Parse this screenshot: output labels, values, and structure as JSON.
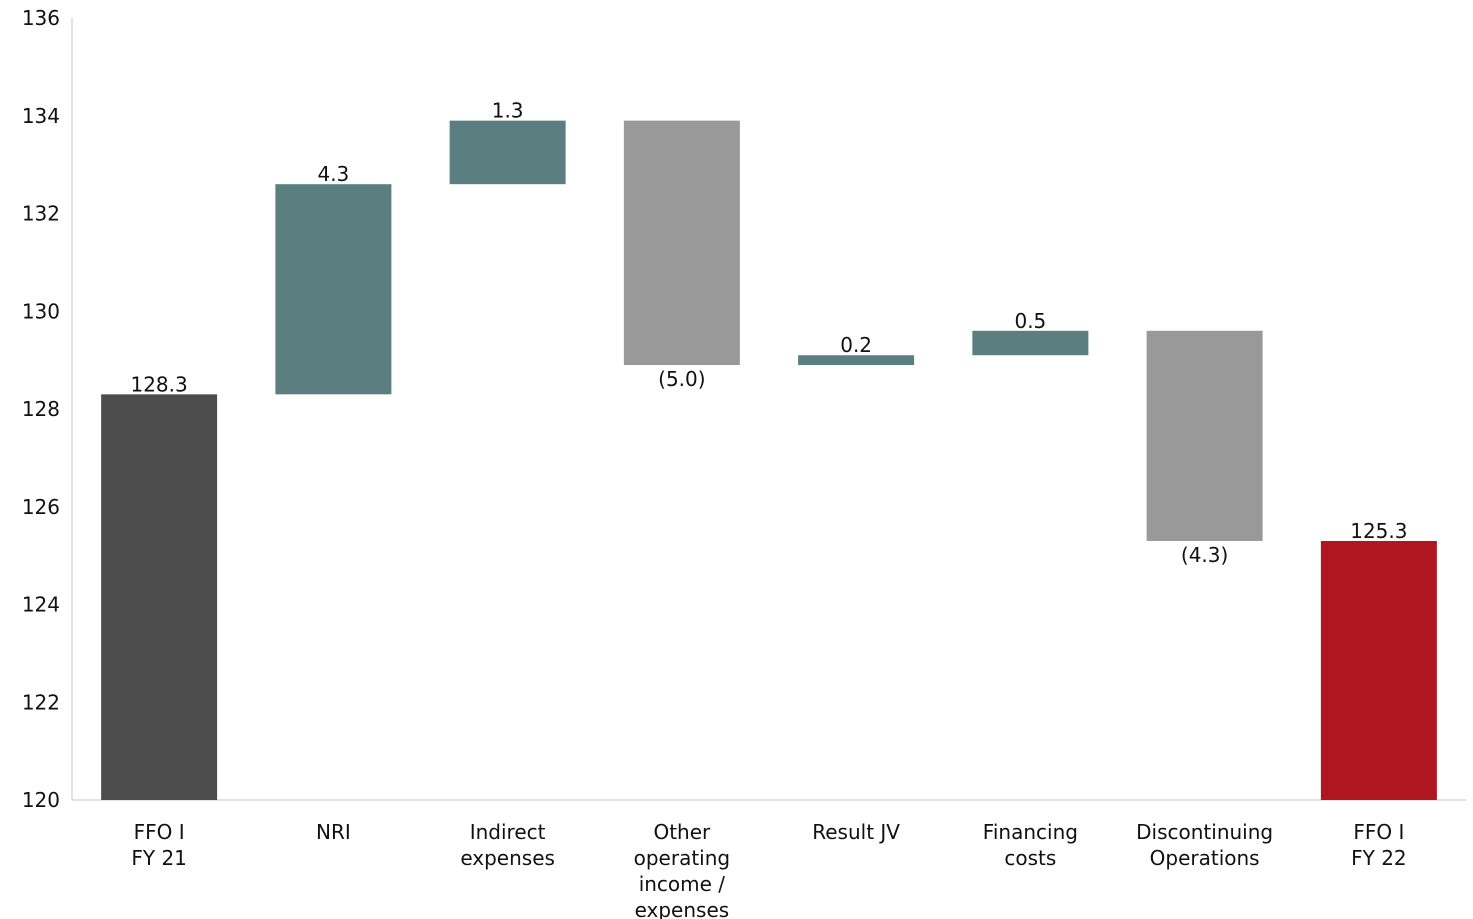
{
  "chart_data": {
    "type": "bar",
    "subtype": "waterfall",
    "title": "",
    "xlabel": "",
    "ylabel": "",
    "ylim": [
      120,
      136
    ],
    "yticks": [
      120,
      122,
      124,
      126,
      128,
      130,
      132,
      134,
      136
    ],
    "ytick_labels": [
      "120",
      "122",
      "124",
      "126",
      "128",
      "130",
      "132",
      "134",
      "136"
    ],
    "grid": false,
    "legend": "none",
    "colors": {
      "total_start": "#4d4d4d",
      "increase": "#5b7f81",
      "decrease": "#999999",
      "total_end": "#b0161f",
      "axis": "#d9d9d9"
    },
    "bars": [
      {
        "category": [
          "FFO I",
          "FY 21"
        ],
        "kind": "total_start",
        "start": 120,
        "end": 128.3,
        "label": "128.3",
        "label_pos": "above"
      },
      {
        "category": [
          "NRI"
        ],
        "kind": "increase",
        "start": 128.3,
        "end": 132.6,
        "label": "4.3",
        "label_pos": "above"
      },
      {
        "category": [
          "Indirect",
          "expenses"
        ],
        "kind": "increase",
        "start": 132.6,
        "end": 133.9,
        "label": "1.3",
        "label_pos": "above"
      },
      {
        "category": [
          "Other",
          "operating",
          "income /",
          "expenses"
        ],
        "kind": "decrease",
        "start": 133.9,
        "end": 128.9,
        "label": "(5.0)",
        "label_pos": "below"
      },
      {
        "category": [
          "Result JV"
        ],
        "kind": "increase",
        "start": 128.9,
        "end": 129.1,
        "label": "0.2",
        "label_pos": "above"
      },
      {
        "category": [
          "Financing",
          "costs"
        ],
        "kind": "increase",
        "start": 129.1,
        "end": 129.6,
        "label": "0.5",
        "label_pos": "above"
      },
      {
        "category": [
          "Discontinuing",
          "Operations"
        ],
        "kind": "decrease",
        "start": 129.6,
        "end": 125.3,
        "label": "(4.3)",
        "label_pos": "below"
      },
      {
        "category": [
          "FFO I",
          "FY 22"
        ],
        "kind": "total_end",
        "start": 120,
        "end": 125.3,
        "label": "125.3",
        "label_pos": "above"
      }
    ]
  }
}
